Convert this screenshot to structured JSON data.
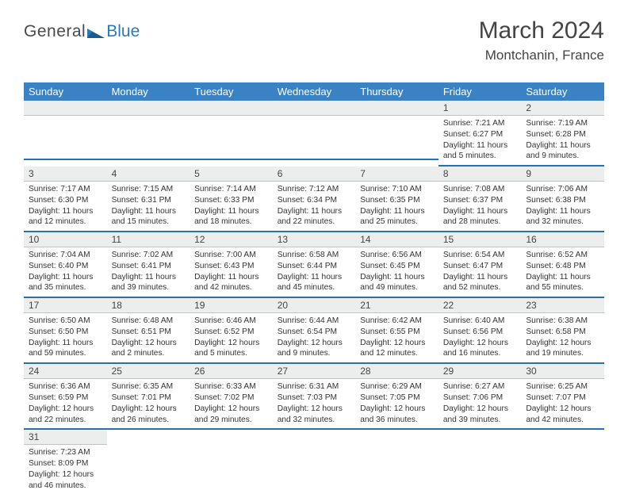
{
  "logo": {
    "word1": "General",
    "word2": "Blue",
    "triangle_color": "#2a7ab8"
  },
  "header": {
    "title": "March 2024",
    "location": "Montchanin, France"
  },
  "colors": {
    "header_bg": "#3b82c4",
    "header_text": "#ffffff",
    "daynum_bg": "#eceeee",
    "daynum_border": "#bfc3c6",
    "row_divider": "#2a6fae"
  },
  "weekdays": [
    "Sunday",
    "Monday",
    "Tuesday",
    "Wednesday",
    "Thursday",
    "Friday",
    "Saturday"
  ],
  "weeks": [
    [
      {
        "empty": true
      },
      {
        "empty": true
      },
      {
        "empty": true
      },
      {
        "empty": true
      },
      {
        "empty": true
      },
      {
        "day": "1",
        "sunrise": "Sunrise: 7:21 AM",
        "sunset": "Sunset: 6:27 PM",
        "daylight": "Daylight: 11 hours and 5 minutes."
      },
      {
        "day": "2",
        "sunrise": "Sunrise: 7:19 AM",
        "sunset": "Sunset: 6:28 PM",
        "daylight": "Daylight: 11 hours and 9 minutes."
      }
    ],
    [
      {
        "day": "3",
        "sunrise": "Sunrise: 7:17 AM",
        "sunset": "Sunset: 6:30 PM",
        "daylight": "Daylight: 11 hours and 12 minutes."
      },
      {
        "day": "4",
        "sunrise": "Sunrise: 7:15 AM",
        "sunset": "Sunset: 6:31 PM",
        "daylight": "Daylight: 11 hours and 15 minutes."
      },
      {
        "day": "5",
        "sunrise": "Sunrise: 7:14 AM",
        "sunset": "Sunset: 6:33 PM",
        "daylight": "Daylight: 11 hours and 18 minutes."
      },
      {
        "day": "6",
        "sunrise": "Sunrise: 7:12 AM",
        "sunset": "Sunset: 6:34 PM",
        "daylight": "Daylight: 11 hours and 22 minutes."
      },
      {
        "day": "7",
        "sunrise": "Sunrise: 7:10 AM",
        "sunset": "Sunset: 6:35 PM",
        "daylight": "Daylight: 11 hours and 25 minutes."
      },
      {
        "day": "8",
        "sunrise": "Sunrise: 7:08 AM",
        "sunset": "Sunset: 6:37 PM",
        "daylight": "Daylight: 11 hours and 28 minutes."
      },
      {
        "day": "9",
        "sunrise": "Sunrise: 7:06 AM",
        "sunset": "Sunset: 6:38 PM",
        "daylight": "Daylight: 11 hours and 32 minutes."
      }
    ],
    [
      {
        "day": "10",
        "sunrise": "Sunrise: 7:04 AM",
        "sunset": "Sunset: 6:40 PM",
        "daylight": "Daylight: 11 hours and 35 minutes."
      },
      {
        "day": "11",
        "sunrise": "Sunrise: 7:02 AM",
        "sunset": "Sunset: 6:41 PM",
        "daylight": "Daylight: 11 hours and 39 minutes."
      },
      {
        "day": "12",
        "sunrise": "Sunrise: 7:00 AM",
        "sunset": "Sunset: 6:43 PM",
        "daylight": "Daylight: 11 hours and 42 minutes."
      },
      {
        "day": "13",
        "sunrise": "Sunrise: 6:58 AM",
        "sunset": "Sunset: 6:44 PM",
        "daylight": "Daylight: 11 hours and 45 minutes."
      },
      {
        "day": "14",
        "sunrise": "Sunrise: 6:56 AM",
        "sunset": "Sunset: 6:45 PM",
        "daylight": "Daylight: 11 hours and 49 minutes."
      },
      {
        "day": "15",
        "sunrise": "Sunrise: 6:54 AM",
        "sunset": "Sunset: 6:47 PM",
        "daylight": "Daylight: 11 hours and 52 minutes."
      },
      {
        "day": "16",
        "sunrise": "Sunrise: 6:52 AM",
        "sunset": "Sunset: 6:48 PM",
        "daylight": "Daylight: 11 hours and 55 minutes."
      }
    ],
    [
      {
        "day": "17",
        "sunrise": "Sunrise: 6:50 AM",
        "sunset": "Sunset: 6:50 PM",
        "daylight": "Daylight: 11 hours and 59 minutes."
      },
      {
        "day": "18",
        "sunrise": "Sunrise: 6:48 AM",
        "sunset": "Sunset: 6:51 PM",
        "daylight": "Daylight: 12 hours and 2 minutes."
      },
      {
        "day": "19",
        "sunrise": "Sunrise: 6:46 AM",
        "sunset": "Sunset: 6:52 PM",
        "daylight": "Daylight: 12 hours and 5 minutes."
      },
      {
        "day": "20",
        "sunrise": "Sunrise: 6:44 AM",
        "sunset": "Sunset: 6:54 PM",
        "daylight": "Daylight: 12 hours and 9 minutes."
      },
      {
        "day": "21",
        "sunrise": "Sunrise: 6:42 AM",
        "sunset": "Sunset: 6:55 PM",
        "daylight": "Daylight: 12 hours and 12 minutes."
      },
      {
        "day": "22",
        "sunrise": "Sunrise: 6:40 AM",
        "sunset": "Sunset: 6:56 PM",
        "daylight": "Daylight: 12 hours and 16 minutes."
      },
      {
        "day": "23",
        "sunrise": "Sunrise: 6:38 AM",
        "sunset": "Sunset: 6:58 PM",
        "daylight": "Daylight: 12 hours and 19 minutes."
      }
    ],
    [
      {
        "day": "24",
        "sunrise": "Sunrise: 6:36 AM",
        "sunset": "Sunset: 6:59 PM",
        "daylight": "Daylight: 12 hours and 22 minutes."
      },
      {
        "day": "25",
        "sunrise": "Sunrise: 6:35 AM",
        "sunset": "Sunset: 7:01 PM",
        "daylight": "Daylight: 12 hours and 26 minutes."
      },
      {
        "day": "26",
        "sunrise": "Sunrise: 6:33 AM",
        "sunset": "Sunset: 7:02 PM",
        "daylight": "Daylight: 12 hours and 29 minutes."
      },
      {
        "day": "27",
        "sunrise": "Sunrise: 6:31 AM",
        "sunset": "Sunset: 7:03 PM",
        "daylight": "Daylight: 12 hours and 32 minutes."
      },
      {
        "day": "28",
        "sunrise": "Sunrise: 6:29 AM",
        "sunset": "Sunset: 7:05 PM",
        "daylight": "Daylight: 12 hours and 36 minutes."
      },
      {
        "day": "29",
        "sunrise": "Sunrise: 6:27 AM",
        "sunset": "Sunset: 7:06 PM",
        "daylight": "Daylight: 12 hours and 39 minutes."
      },
      {
        "day": "30",
        "sunrise": "Sunrise: 6:25 AM",
        "sunset": "Sunset: 7:07 PM",
        "daylight": "Daylight: 12 hours and 42 minutes."
      }
    ],
    [
      {
        "day": "31",
        "sunrise": "Sunrise: 7:23 AM",
        "sunset": "Sunset: 8:09 PM",
        "daylight": "Daylight: 12 hours and 46 minutes."
      },
      {
        "empty": true
      },
      {
        "empty": true
      },
      {
        "empty": true
      },
      {
        "empty": true
      },
      {
        "empty": true
      },
      {
        "empty": true
      }
    ]
  ]
}
